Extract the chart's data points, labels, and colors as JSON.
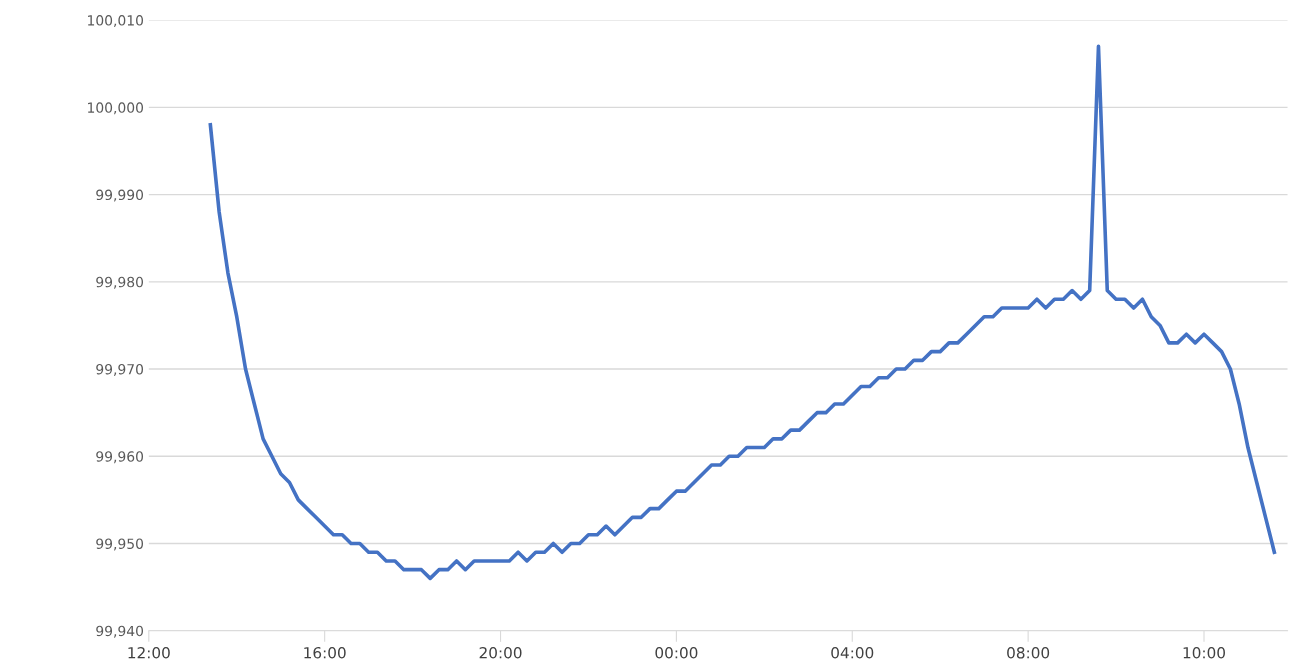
{
  "chart_data": {
    "type": "line",
    "categories": [
      "12:00",
      null,
      null,
      null,
      null,
      null,
      null,
      null,
      null,
      null,
      null,
      null,
      null,
      null,
      null,
      null,
      null,
      null,
      null,
      null,
      "16:00",
      null,
      null,
      null,
      null,
      null,
      null,
      null,
      null,
      null,
      null,
      null,
      null,
      null,
      null,
      null,
      null,
      null,
      null,
      null,
      "20:00",
      null,
      null,
      null,
      null,
      null,
      null,
      null,
      null,
      null,
      null,
      null,
      null,
      null,
      null,
      null,
      null,
      null,
      null,
      null,
      "00:00",
      null,
      null,
      null,
      null,
      null,
      null,
      null,
      null,
      null,
      null,
      null,
      null,
      null,
      null,
      null,
      null,
      null,
      null,
      null,
      "04:00",
      null,
      null,
      null,
      null,
      null,
      null,
      null,
      null,
      null,
      null,
      null,
      null,
      null,
      null,
      null,
      null,
      null,
      null,
      null,
      "08:00",
      null,
      null,
      null,
      null,
      null,
      null,
      null,
      null,
      null,
      null,
      null,
      null,
      null,
      null,
      null,
      null,
      null,
      null,
      null,
      "10:00",
      null,
      null,
      null,
      null,
      null,
      null,
      null,
      null
    ],
    "series": [
      {
        "color": "#4472c4",
        "values": [
          null,
          null,
          null,
          null,
          null,
          null,
          null,
          99998,
          99988,
          99981,
          99976,
          99970,
          99966,
          99962,
          99960,
          99958,
          99957,
          99955,
          99954,
          99953,
          99952,
          99951,
          99951,
          99950,
          99950,
          99949,
          99949,
          99948,
          99948,
          99947,
          99947,
          99947,
          99946,
          99947,
          99947,
          99948,
          99947,
          99948,
          99948,
          99948,
          99948,
          99948,
          99949,
          99948,
          99949,
          99949,
          99950,
          99949,
          99950,
          99950,
          99951,
          99951,
          99952,
          99951,
          99952,
          99953,
          99953,
          99954,
          99954,
          99955,
          99956,
          99956,
          99957,
          99958,
          99959,
          99959,
          99960,
          99960,
          99961,
          99961,
          99961,
          99962,
          99962,
          99963,
          99963,
          99964,
          99965,
          99965,
          99966,
          99966,
          99967,
          99968,
          99968,
          99969,
          99969,
          99970,
          99970,
          99971,
          99971,
          99972,
          99972,
          99973,
          99973,
          99974,
          99975,
          99976,
          99976,
          99977,
          99977,
          99977,
          99977,
          99978,
          99977,
          99978,
          99978,
          99979,
          99978,
          99979,
          100007,
          99979,
          99978,
          99978,
          99977,
          99978,
          99976,
          99975,
          99973,
          99973,
          99974,
          99973,
          99974,
          99973,
          99972,
          99970,
          99966,
          99961,
          99957,
          99953,
          99949
        ]
      }
    ],
    "ylim": [
      99940,
      100010
    ],
    "yticks": [
      {
        "value": 99940,
        "label": "99,940"
      },
      {
        "value": 99950,
        "label": "99,950"
      },
      {
        "value": 99960,
        "label": "99,960"
      },
      {
        "value": 99970,
        "label": "99,970"
      },
      {
        "value": 99980,
        "label": "99,980"
      },
      {
        "value": 99990,
        "label": "99,990"
      },
      {
        "value": 100000,
        "label": "100,000"
      },
      {
        "value": 100010,
        "label": "100,010"
      }
    ],
    "grid": "y",
    "marker": "none",
    "line_style": "solid",
    "legend": false
  }
}
